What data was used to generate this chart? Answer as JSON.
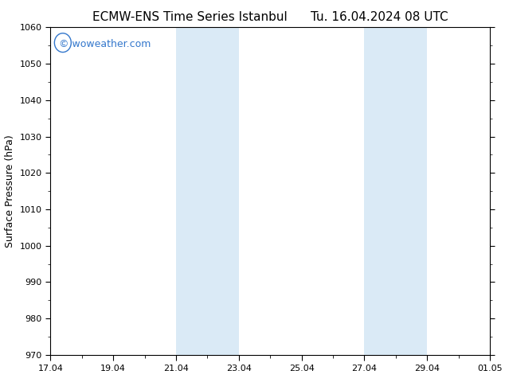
{
  "title_left": "ECMW-ENS Time Series Istanbul",
  "title_right": "Tu. 16.04.2024 08 UTC",
  "ylabel": "Surface Pressure (hPa)",
  "ylim": [
    970,
    1060
  ],
  "yticks": [
    970,
    980,
    990,
    1000,
    1010,
    1020,
    1030,
    1040,
    1050,
    1060
  ],
  "xtick_labels": [
    "17.04",
    "19.04",
    "21.04",
    "23.04",
    "25.04",
    "27.04",
    "29.04",
    "01.05"
  ],
  "xtick_positions_days": [
    0,
    2,
    4,
    6,
    8,
    10,
    12,
    14
  ],
  "x_total_days": 14,
  "shaded_bands": [
    {
      "x_start_days": 4.0,
      "x_end_days": 5.0
    },
    {
      "x_start_days": 5.0,
      "x_end_days": 6.0
    },
    {
      "x_start_days": 10.0,
      "x_end_days": 11.0
    },
    {
      "x_start_days": 11.0,
      "x_end_days": 12.0
    }
  ],
  "shaded_color": "#daeaf6",
  "background_color": "#ffffff",
  "watermark_text": "© woweather.com",
  "watermark_color": "#3377cc",
  "watermark_fontsize": 9,
  "title_fontsize": 11,
  "tick_label_fontsize": 8,
  "ylabel_fontsize": 9
}
